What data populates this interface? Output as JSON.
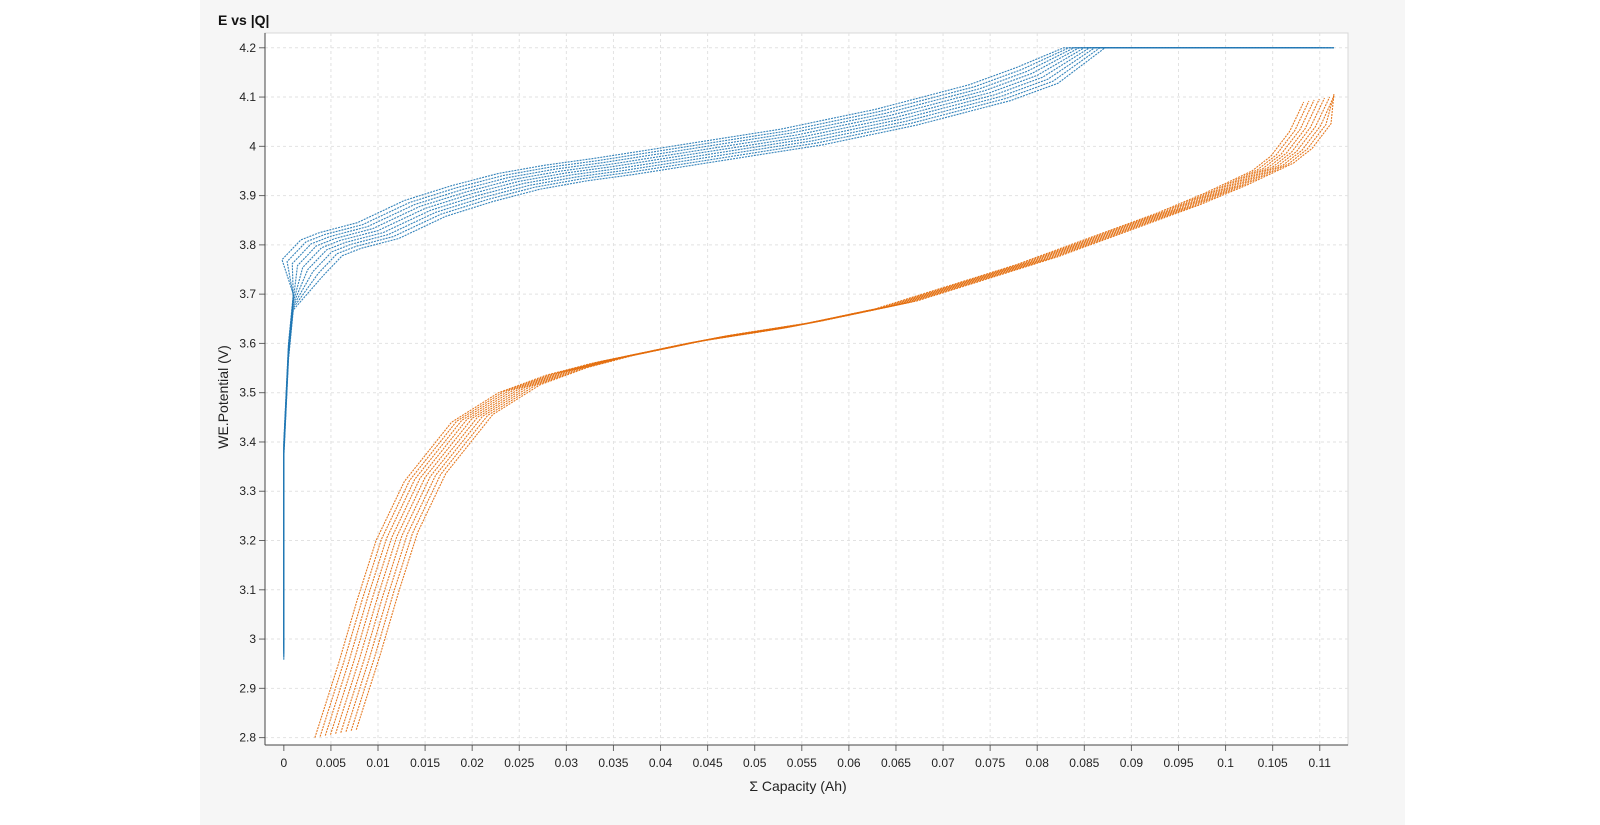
{
  "title": "E vs |Q|",
  "chart_data": {
    "type": "scatter",
    "title": "E vs |Q|",
    "xlabel": "Σ Capacity (Ah)",
    "ylabel": "WE.Potential (V)",
    "xlim": [
      -0.002,
      0.113
    ],
    "ylim": [
      2.785,
      4.23
    ],
    "grid": true,
    "x_ticks": [
      "0",
      "0.005",
      "0.01",
      "0.015",
      "0.02",
      "0.025",
      "0.03",
      "0.035",
      "0.04",
      "0.045",
      "0.05",
      "0.055",
      "0.06",
      "0.065",
      "0.07",
      "0.075",
      "0.08",
      "0.085",
      "0.09",
      "0.095",
      "0.1",
      "0.105",
      "0.11"
    ],
    "y_ticks": [
      "2.8",
      "2.9",
      "3",
      "3.1",
      "3.2",
      "3.3",
      "3.4",
      "3.5",
      "3.6",
      "3.7",
      "3.8",
      "3.9",
      "4",
      "4.1",
      "4.2"
    ],
    "series": [
      {
        "color": "#1f77b4",
        "values": [
          [
            0.0,
            2.99
          ],
          [
            0.0,
            3.4
          ],
          [
            0.0005,
            3.6
          ],
          [
            0.001,
            3.7
          ],
          [
            0.002,
            3.77
          ],
          [
            0.004,
            3.81
          ],
          [
            0.006,
            3.825
          ],
          [
            0.01,
            3.845
          ],
          [
            0.015,
            3.89
          ],
          [
            0.02,
            3.92
          ],
          [
            0.025,
            3.945
          ],
          [
            0.03,
            3.962
          ],
          [
            0.035,
            3.975
          ],
          [
            0.04,
            3.99
          ],
          [
            0.045,
            4.005
          ],
          [
            0.05,
            4.02
          ],
          [
            0.055,
            4.035
          ],
          [
            0.06,
            4.055
          ],
          [
            0.065,
            4.075
          ],
          [
            0.07,
            4.1
          ],
          [
            0.075,
            4.125
          ],
          [
            0.08,
            4.16
          ],
          [
            0.085,
            4.2
          ],
          [
            0.09,
            4.2
          ],
          [
            0.095,
            4.2
          ],
          [
            0.1,
            4.2
          ],
          [
            0.105,
            4.2
          ],
          [
            0.111,
            4.2
          ]
        ]
      },
      {
        "color": "#e36c0a",
        "values": [
          [
            0.0055,
            2.8
          ],
          [
            0.008,
            2.95
          ],
          [
            0.01,
            3.08
          ],
          [
            0.012,
            3.2
          ],
          [
            0.015,
            3.32
          ],
          [
            0.02,
            3.44
          ],
          [
            0.025,
            3.5
          ],
          [
            0.03,
            3.535
          ],
          [
            0.035,
            3.56
          ],
          [
            0.04,
            3.58
          ],
          [
            0.045,
            3.6
          ],
          [
            0.05,
            3.615
          ],
          [
            0.055,
            3.63
          ],
          [
            0.06,
            3.65
          ],
          [
            0.065,
            3.67
          ],
          [
            0.07,
            3.7
          ],
          [
            0.075,
            3.73
          ],
          [
            0.08,
            3.76
          ],
          [
            0.085,
            3.795
          ],
          [
            0.09,
            3.83
          ],
          [
            0.095,
            3.865
          ],
          [
            0.1,
            3.905
          ],
          [
            0.105,
            3.95
          ],
          [
            0.107,
            3.98
          ],
          [
            0.109,
            4.03
          ],
          [
            0.1105,
            4.09
          ]
        ]
      }
    ]
  }
}
